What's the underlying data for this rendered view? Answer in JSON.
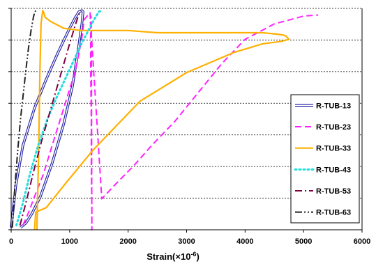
{
  "chart_data": {
    "type": "line",
    "xlabel": "Strain(×10",
    "xlabel_sup": "-6",
    "xlabel_close": ")",
    "xlim": [
      0,
      6000
    ],
    "ylim": [
      0,
      1
    ],
    "x_ticks": [
      0,
      1000,
      2000,
      3000,
      4000,
      5000,
      6000
    ],
    "x_tick_labels": [
      "0",
      "1000",
      "2000",
      "3000",
      "4000",
      "5000",
      "6000"
    ],
    "grid": "horizontal dashed",
    "legend_position": "right",
    "series": [
      {
        "name": "R-TUB-13",
        "color": "#1a1aa0",
        "style": "double",
        "x": [
          0,
          80,
          200,
          400,
          600,
          800,
          1000,
          1100,
          1160,
          1210,
          1230,
          1210,
          1150,
          1050,
          900,
          700,
          500,
          350,
          250,
          160
        ],
        "y": [
          0.01,
          0.2,
          0.38,
          0.55,
          0.68,
          0.8,
          0.91,
          0.96,
          0.985,
          0.99,
          0.985,
          0.93,
          0.82,
          0.65,
          0.48,
          0.3,
          0.15,
          0.07,
          0.03,
          0.01
        ]
      },
      {
        "name": "R-TUB-23",
        "color": "#ff22ff",
        "style": "dash",
        "x": [
          200,
          300,
          400,
          550,
          700,
          900,
          1100,
          1200,
          1250,
          1350,
          1360,
          1360,
          1370,
          1370,
          1380,
          1380,
          1370,
          1360,
          1350,
          1550,
          1800,
          2100,
          2400,
          2800,
          3200,
          3600,
          4000,
          4500,
          5000,
          5250
        ],
        "y": [
          0.02,
          0.08,
          0.15,
          0.25,
          0.38,
          0.55,
          0.72,
          0.85,
          0.95,
          0.98,
          0.9,
          0.7,
          0.5,
          0.3,
          0.1,
          0.0,
          0.96,
          0.965,
          0.97,
          0.14,
          0.21,
          0.29,
          0.38,
          0.49,
          0.62,
          0.75,
          0.86,
          0.93,
          0.965,
          0.97
        ]
      },
      {
        "name": "R-TUB-33",
        "color": "#ffb000",
        "style": "solid",
        "x": [
          440,
          470,
          490,
          510,
          540,
          560,
          580,
          680,
          900,
          1200,
          1500,
          2000,
          2500,
          3000,
          3500,
          4000,
          4300,
          4500,
          4650,
          4700,
          4750,
          4600,
          4300,
          3800,
          3000,
          2200,
          1400,
          900,
          600,
          420,
          400
        ],
        "y": [
          0.0,
          0.35,
          0.7,
          0.93,
          0.99,
          0.98,
          0.96,
          0.94,
          0.91,
          0.9,
          0.9,
          0.9,
          0.89,
          0.89,
          0.89,
          0.89,
          0.89,
          0.885,
          0.88,
          0.875,
          0.86,
          0.85,
          0.84,
          0.8,
          0.71,
          0.58,
          0.36,
          0.2,
          0.1,
          0.08,
          0.0
        ]
      },
      {
        "name": "R-TUB-43",
        "color": "#22dddd",
        "style": "dot",
        "x": [
          90,
          200,
          320,
          460,
          620,
          780,
          940,
          1080,
          1200,
          1320,
          1420,
          1500,
          1550
        ],
        "y": [
          0.02,
          0.12,
          0.25,
          0.38,
          0.5,
          0.6,
          0.69,
          0.77,
          0.84,
          0.9,
          0.95,
          0.985,
          0.99
        ]
      },
      {
        "name": "R-TUB-53",
        "color": "#7a0040",
        "style": "dashdot",
        "x": [
          150,
          250,
          380,
          520,
          660,
          780,
          900,
          1000,
          1080,
          1140,
          1190
        ],
        "y": [
          0.02,
          0.12,
          0.26,
          0.4,
          0.53,
          0.64,
          0.75,
          0.84,
          0.91,
          0.96,
          0.99
        ]
      },
      {
        "name": "R-TUB-63",
        "color": "#222222",
        "style": "dashdotdot",
        "x": [
          20,
          60,
          110,
          160,
          210,
          260,
          300,
          340,
          380,
          400,
          420
        ],
        "y": [
          0.01,
          0.18,
          0.35,
          0.5,
          0.62,
          0.74,
          0.83,
          0.9,
          0.96,
          0.98,
          0.99
        ]
      }
    ]
  }
}
